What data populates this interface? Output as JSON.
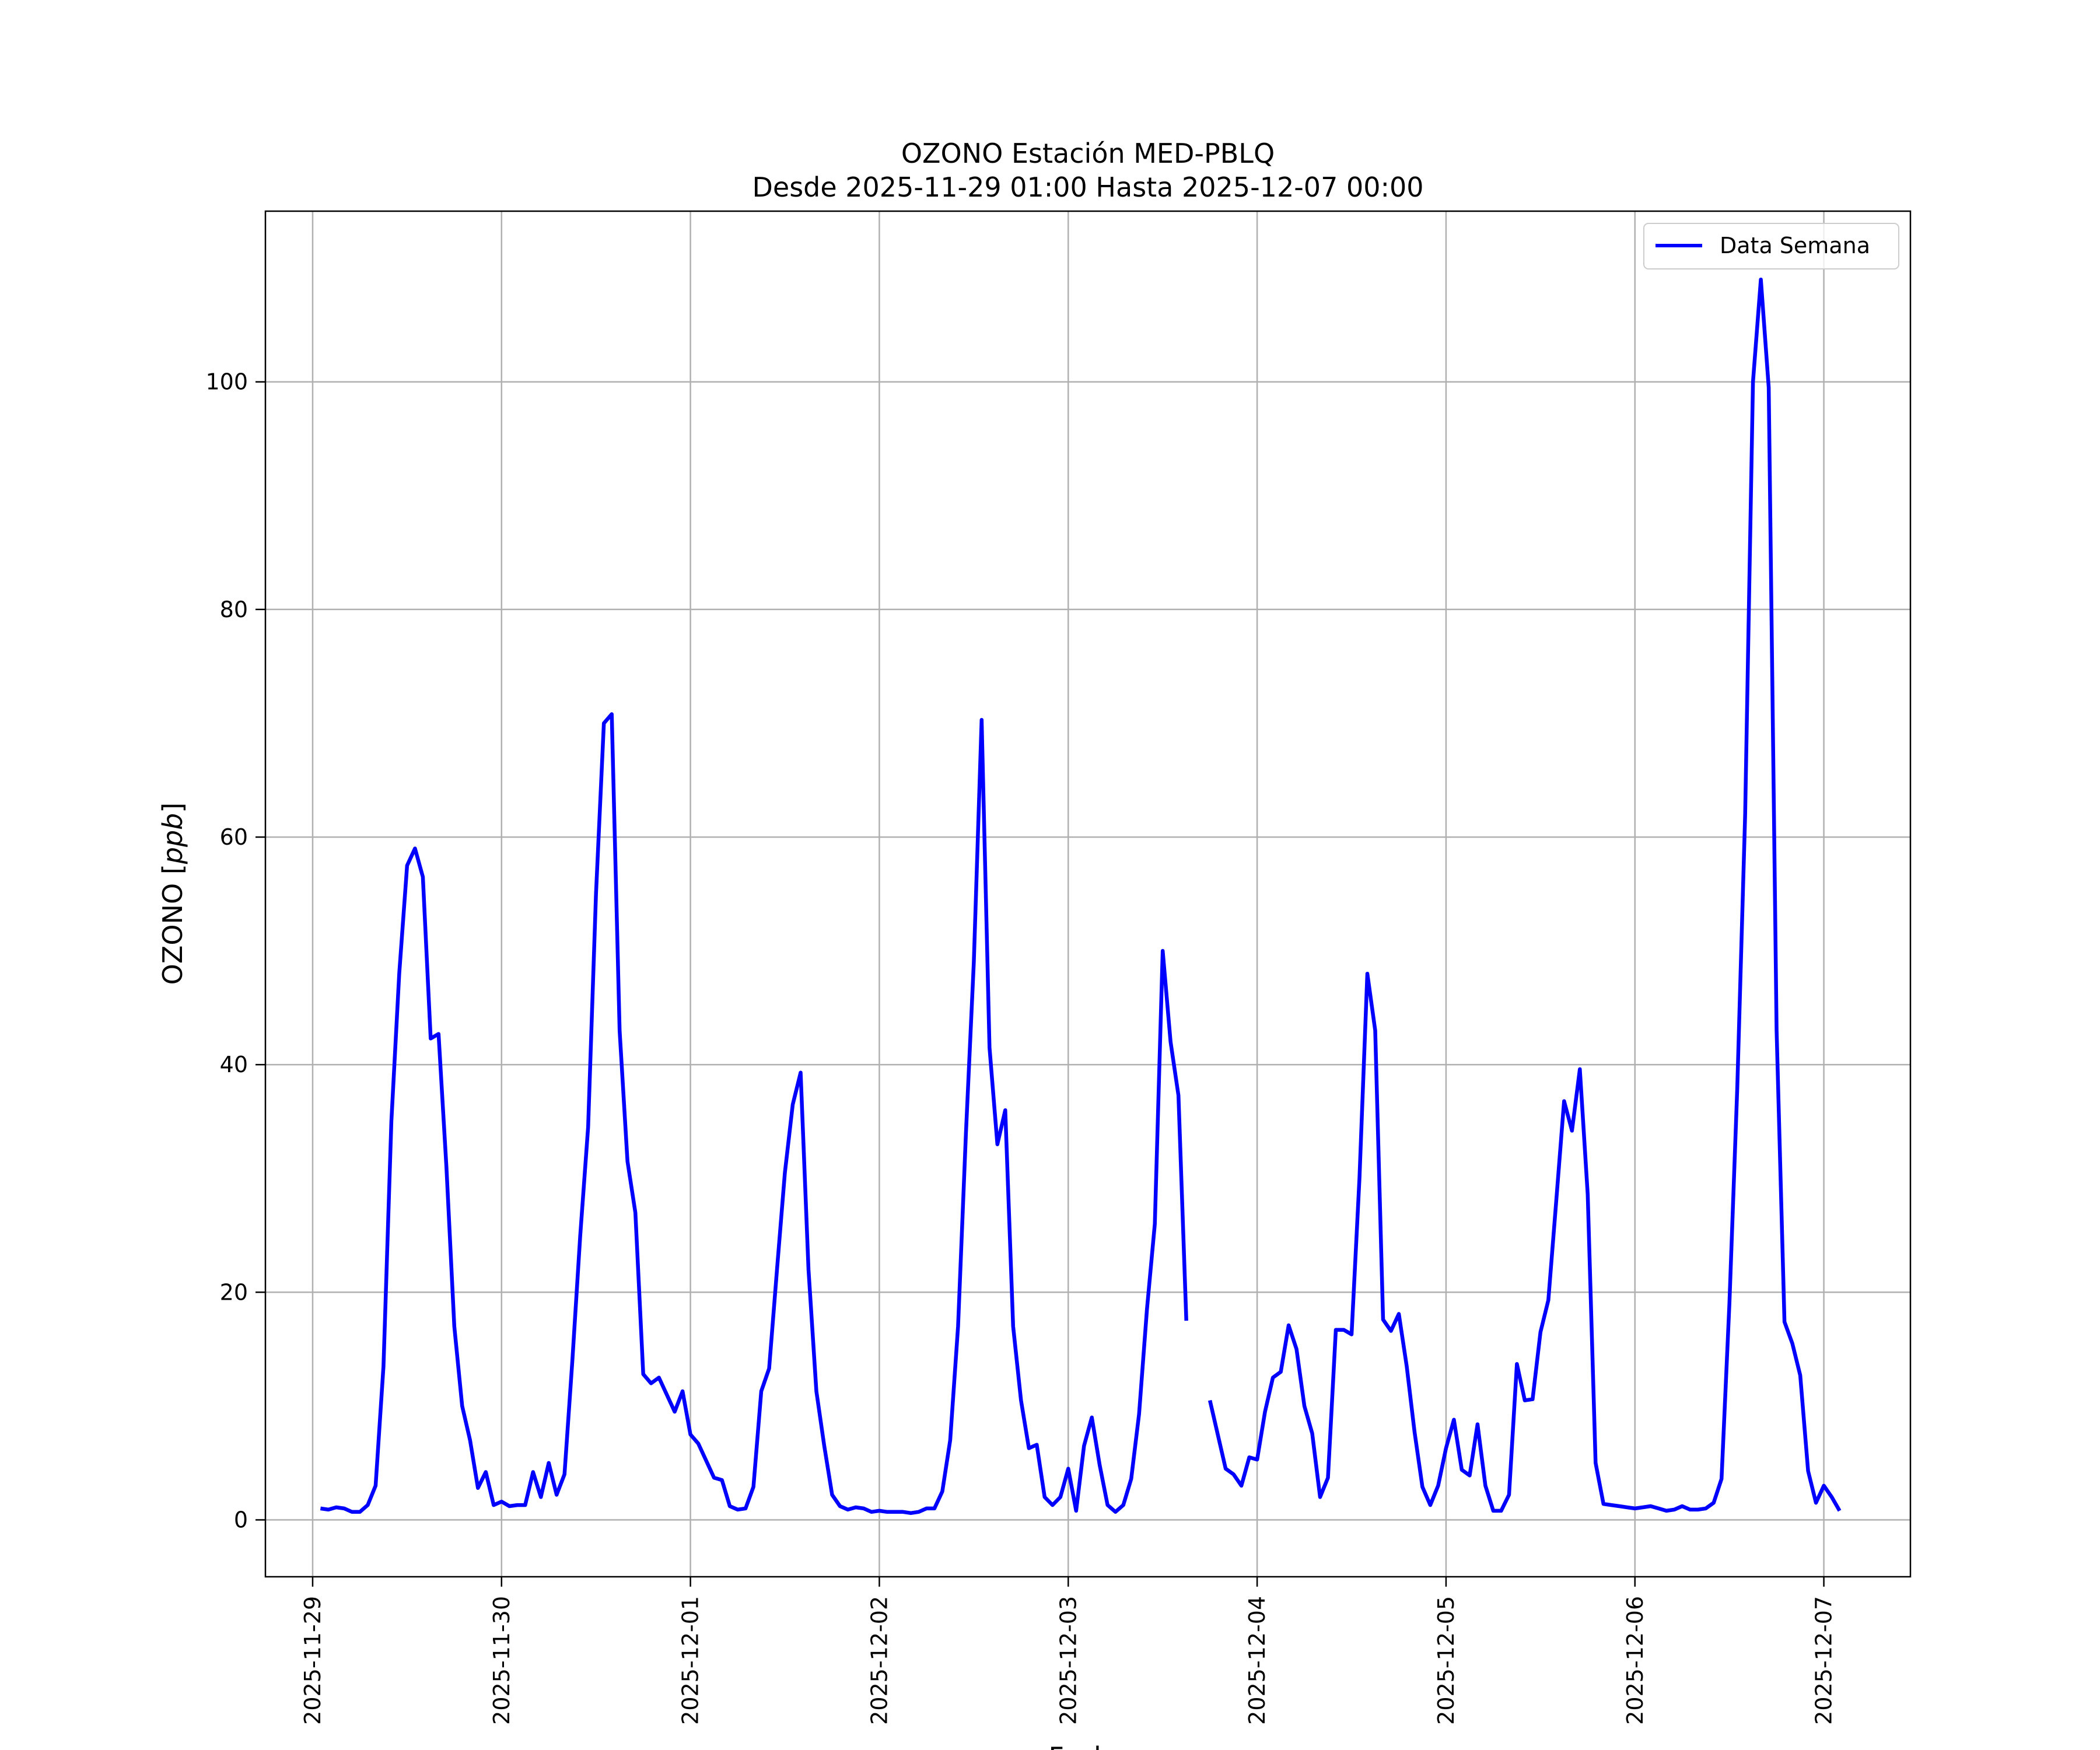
{
  "chart_data": {
    "type": "line",
    "title_line1": "OZONO Estación MED-PBLQ",
    "title_line2": "Desde 2025-11-29 01:00 Hasta 2025-12-07 00:00",
    "xlabel": "Fecha",
    "ylabel": "OZONO [ppb]",
    "ylabel_prefix": "OZONO [",
    "ylabel_unit": "ppb",
    "ylabel_suffix": "]",
    "x_tick_labels": [
      "2025-11-29",
      "2025-11-30",
      "2025-12-01",
      "2025-12-02",
      "2025-12-03",
      "2025-12-04",
      "2025-12-05",
      "2025-12-06",
      "2025-12-07"
    ],
    "y_ticks": [
      0,
      20,
      40,
      60,
      80,
      100
    ],
    "y_tick_labels": [
      "0",
      "20",
      "40",
      "60",
      "80",
      "100"
    ],
    "xlim": [
      "2025-11-28 18:00",
      "2025-12-07 11:00"
    ],
    "ylim": [
      -5,
      115
    ],
    "grid": true,
    "legend_position": "top-right",
    "color": "#0000ff",
    "series": [
      {
        "name": "Data Semana",
        "start": "2025-11-29 01:00",
        "interval": "1h",
        "values": [
          1,
          0.9,
          1.1,
          1,
          0.7,
          0.7,
          1.3,
          3,
          13.5,
          35,
          48,
          57.5,
          59,
          56.5,
          42.3,
          42.7,
          31,
          17,
          10,
          7,
          2.8,
          4.2,
          1.3,
          1.6,
          1.2,
          1.3,
          1.3,
          4.2,
          2,
          5,
          2.2,
          4,
          14,
          25,
          34.5,
          55,
          70,
          70.8,
          43,
          31.5,
          27,
          12.8,
          12,
          12.5,
          11,
          9.5,
          11.3,
          7.5,
          6.7,
          5.2,
          3.7,
          3.5,
          1.2,
          0.9,
          1,
          2.9,
          11.3,
          13.3,
          22,
          30.5,
          36.5,
          39.3,
          22,
          11.3,
          6.5,
          2.2,
          1.2,
          0.9,
          1.1,
          1,
          0.7,
          0.8,
          0.7,
          0.7,
          0.7,
          0.6,
          0.7,
          1,
          1,
          2.5,
          7,
          17,
          34,
          49,
          70.3,
          41.5,
          33,
          36,
          17,
          10.5,
          6.3,
          6.6,
          2,
          1.3,
          2,
          4.5,
          0.8,
          6.5,
          9,
          4.8,
          1.3,
          0.7,
          1.3,
          3.6,
          9.3,
          18.5,
          26,
          50,
          42,
          37.3,
          17.5,
          null,
          null,
          10.5,
          7.5,
          4.5,
          4,
          3,
          5.5,
          5.3,
          9.5,
          12.5,
          13,
          17.1,
          15,
          10,
          7.6,
          2,
          3.7,
          16.7,
          16.7,
          16.3,
          30,
          48,
          43,
          17.6,
          16.6,
          18.1,
          13.5,
          7.7,
          2.9,
          1.3,
          3,
          6.3,
          8.8,
          4.4,
          3.9,
          8.4,
          3,
          0.8,
          0.8,
          2.2,
          13.7,
          10.5,
          10.6,
          16.5,
          19.3,
          28,
          36.8,
          34.2,
          39.6,
          28.6,
          5,
          1.4,
          1.3,
          1.2,
          1.1,
          1,
          1.1,
          1.2,
          1,
          0.8,
          0.9,
          1.2,
          0.9,
          0.9,
          1,
          1.5,
          3.6,
          19,
          38,
          62,
          100,
          109,
          99.5,
          43,
          17.4,
          15.5,
          12.7,
          4.3,
          1.5,
          3,
          2,
          0.8
        ]
      }
    ]
  }
}
